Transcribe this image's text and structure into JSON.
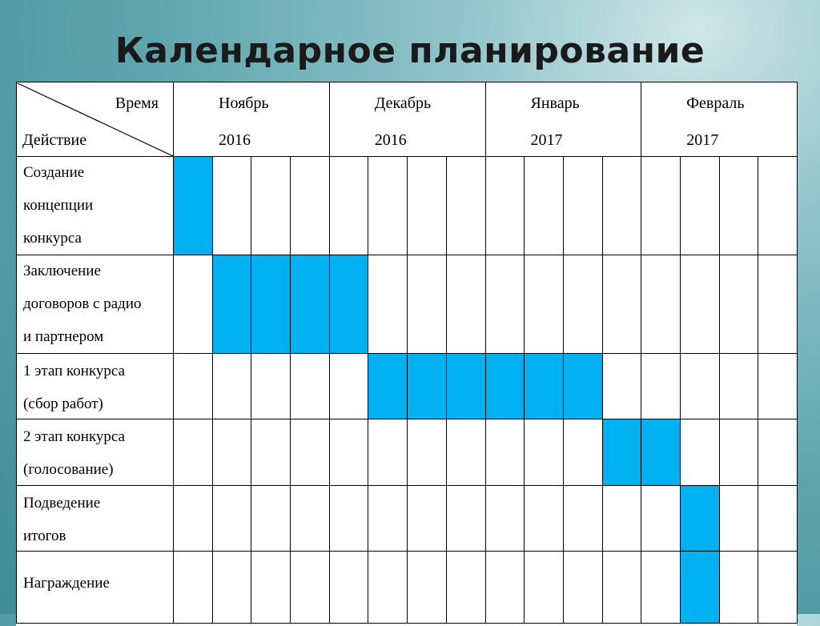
{
  "title": "Календарное планирование",
  "header": {
    "time_label": "Время",
    "action_label": "Действие",
    "months": [
      {
        "name": "Ноябрь",
        "year": "2016"
      },
      {
        "name": "Декабрь",
        "year": "2016"
      },
      {
        "name": "Январь",
        "year": "2017"
      },
      {
        "name": "Февраль",
        "year": "2017"
      }
    ],
    "weeks_per_month": 4
  },
  "fill_color": "#00b0f0",
  "tasks": [
    {
      "lines": [
        "Создание",
        "концепции",
        "конкурса"
      ],
      "start_week": 1,
      "end_week": 1
    },
    {
      "lines": [
        "Заключение",
        "договоров с радио",
        "и партнером"
      ],
      "start_week": 2,
      "end_week": 5
    },
    {
      "lines": [
        "1 этап конкурса",
        "(сбор работ)"
      ],
      "start_week": 6,
      "end_week": 11
    },
    {
      "lines": [
        "2 этап конкурса",
        "(голосование)"
      ],
      "start_week": 12,
      "end_week": 13
    },
    {
      "lines": [
        "Подведение",
        "итогов"
      ],
      "start_week": 14,
      "end_week": 14
    },
    {
      "lines": [
        "Награждение"
      ],
      "start_week": 14,
      "end_week": 14
    }
  ]
}
